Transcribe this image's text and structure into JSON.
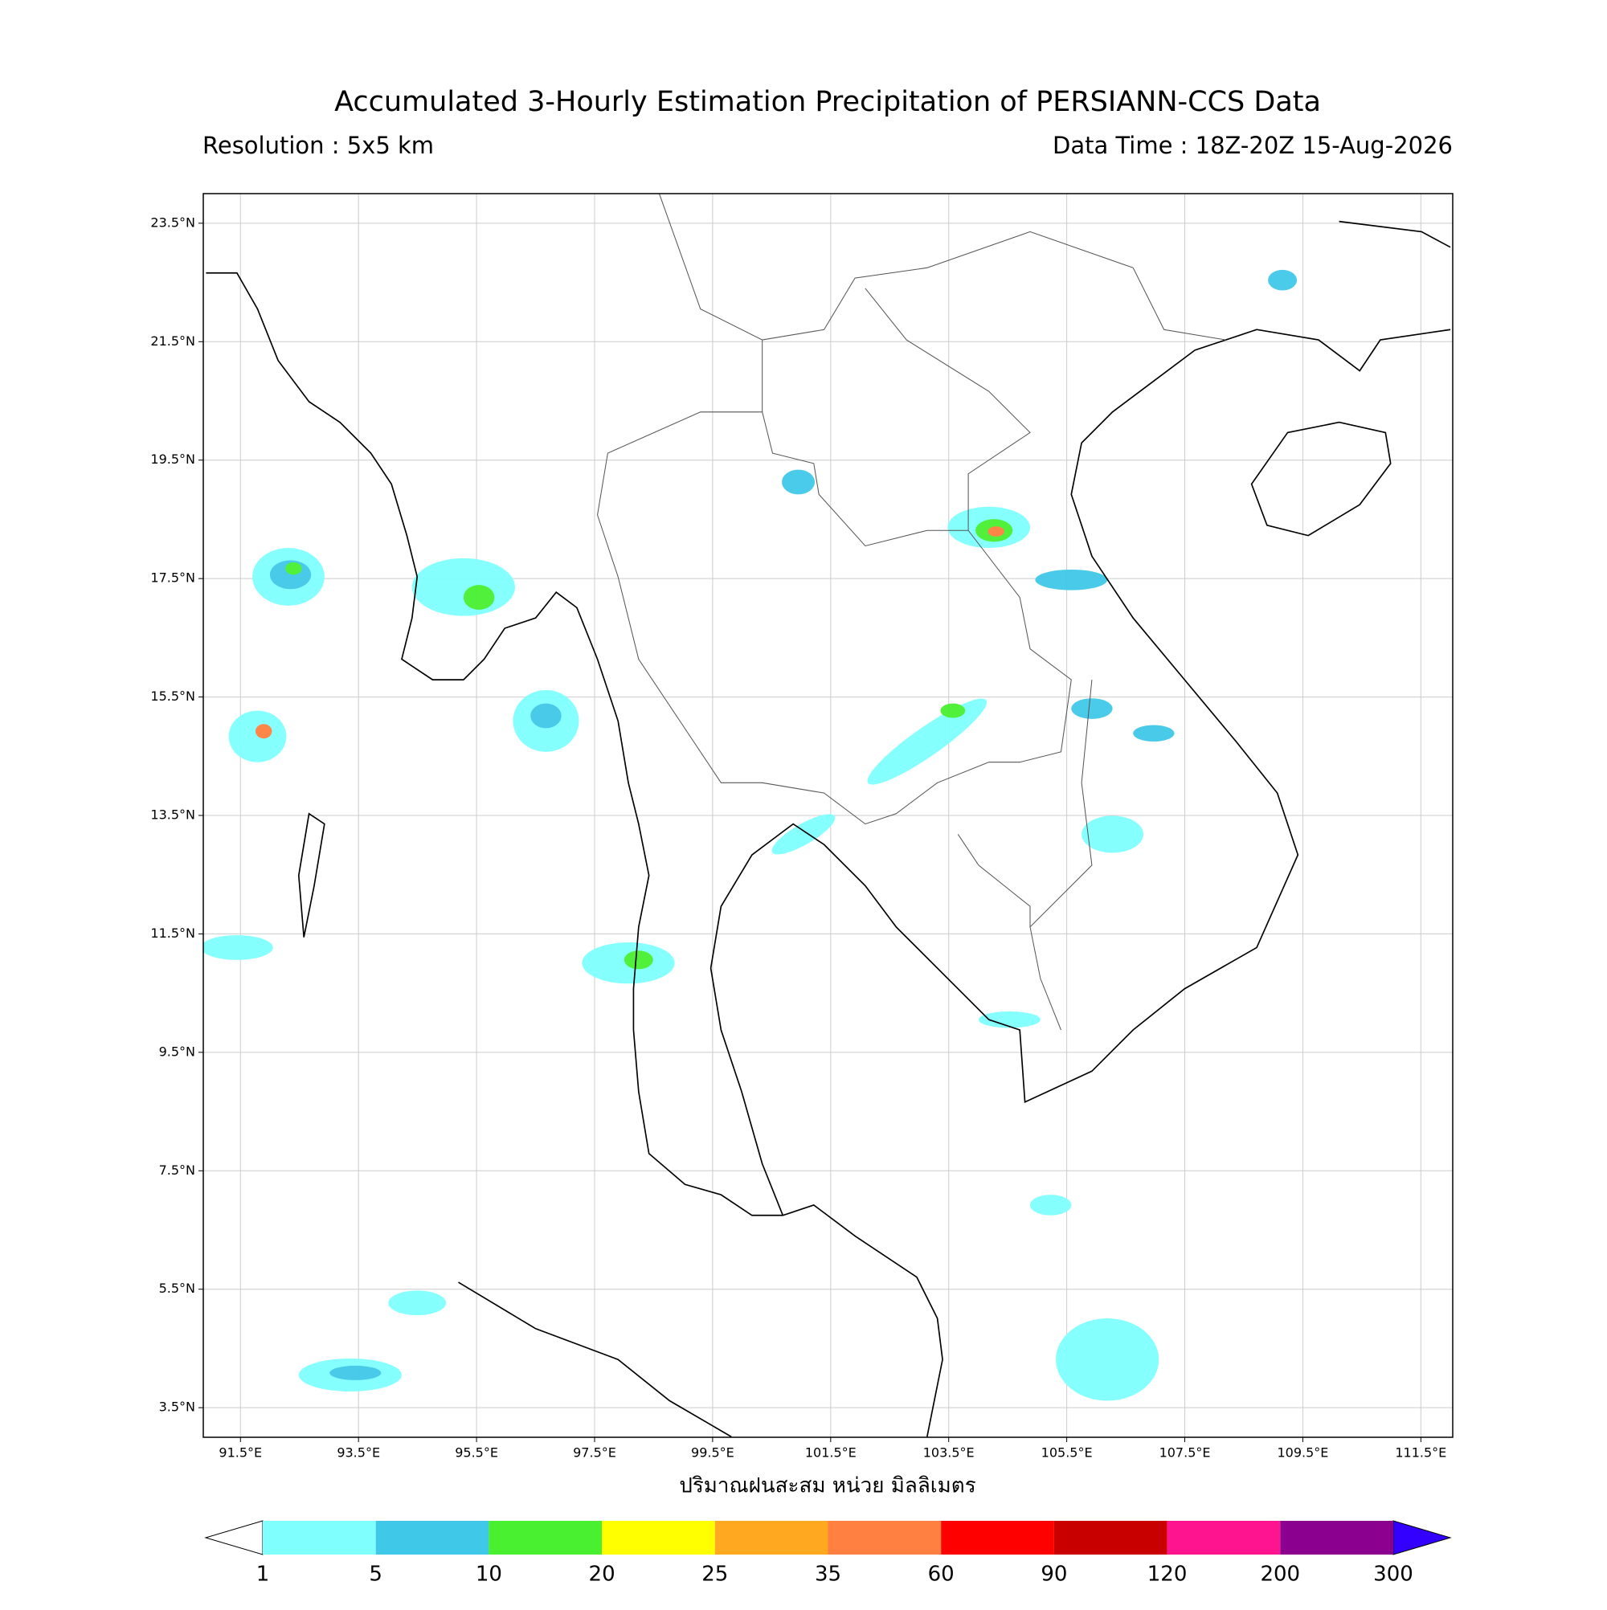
{
  "header": {
    "title": "Accumulated 3-Hourly Estimation Precipitation of PERSIANN-CCS Data",
    "resolution": "Resolution : 5x5 km",
    "data_time": "Data Time : 18Z-20Z 15-Aug-2026"
  },
  "map": {
    "xlim": [
      90.87,
      112.04
    ],
    "ylim": [
      3.0,
      24.0
    ],
    "grid": true,
    "xticks": [
      {
        "value": 91.5,
        "label": "91.5°E"
      },
      {
        "value": 93.5,
        "label": "93.5°E"
      },
      {
        "value": 95.5,
        "label": "95.5°E"
      },
      {
        "value": 97.5,
        "label": "97.5°E"
      },
      {
        "value": 99.5,
        "label": "99.5°E"
      },
      {
        "value": 101.5,
        "label": "101.5°E"
      },
      {
        "value": 103.5,
        "label": "103.5°E"
      },
      {
        "value": 105.5,
        "label": "105.5°E"
      },
      {
        "value": 107.5,
        "label": "107.5°E"
      },
      {
        "value": 109.5,
        "label": "109.5°E"
      },
      {
        "value": 111.5,
        "label": "111.5°E"
      }
    ],
    "yticks": [
      {
        "value": 3.5,
        "label": "3.5°N"
      },
      {
        "value": 5.5,
        "label": "5.5°N"
      },
      {
        "value": 7.5,
        "label": "7.5°N"
      },
      {
        "value": 9.5,
        "label": "9.5°N"
      },
      {
        "value": 11.5,
        "label": "11.5°N"
      },
      {
        "value": 13.5,
        "label": "13.5°N"
      },
      {
        "value": 15.5,
        "label": "15.5°N"
      },
      {
        "value": 17.5,
        "label": "17.5°N"
      },
      {
        "value": 19.5,
        "label": "19.5°N"
      },
      {
        "value": 21.5,
        "label": "21.5°N"
      },
      {
        "value": 23.5,
        "label": "23.5°N"
      }
    ],
    "x_label": "ปริมาณฝนสะสม หน่วย มิลลิเมตร"
  },
  "colorbar": {
    "levels": [
      1,
      5,
      10,
      20,
      25,
      35,
      60,
      90,
      120,
      200,
      300
    ],
    "colors": [
      "#80ffff",
      "#40c8e8",
      "#48f030",
      "#ffff00",
      "#ffa820",
      "#ff8040",
      "#ff0000",
      "#c80000",
      "#ff1490",
      "#8c0090"
    ],
    "under_color": "#ffffff",
    "over_color": "#3300ff"
  }
}
